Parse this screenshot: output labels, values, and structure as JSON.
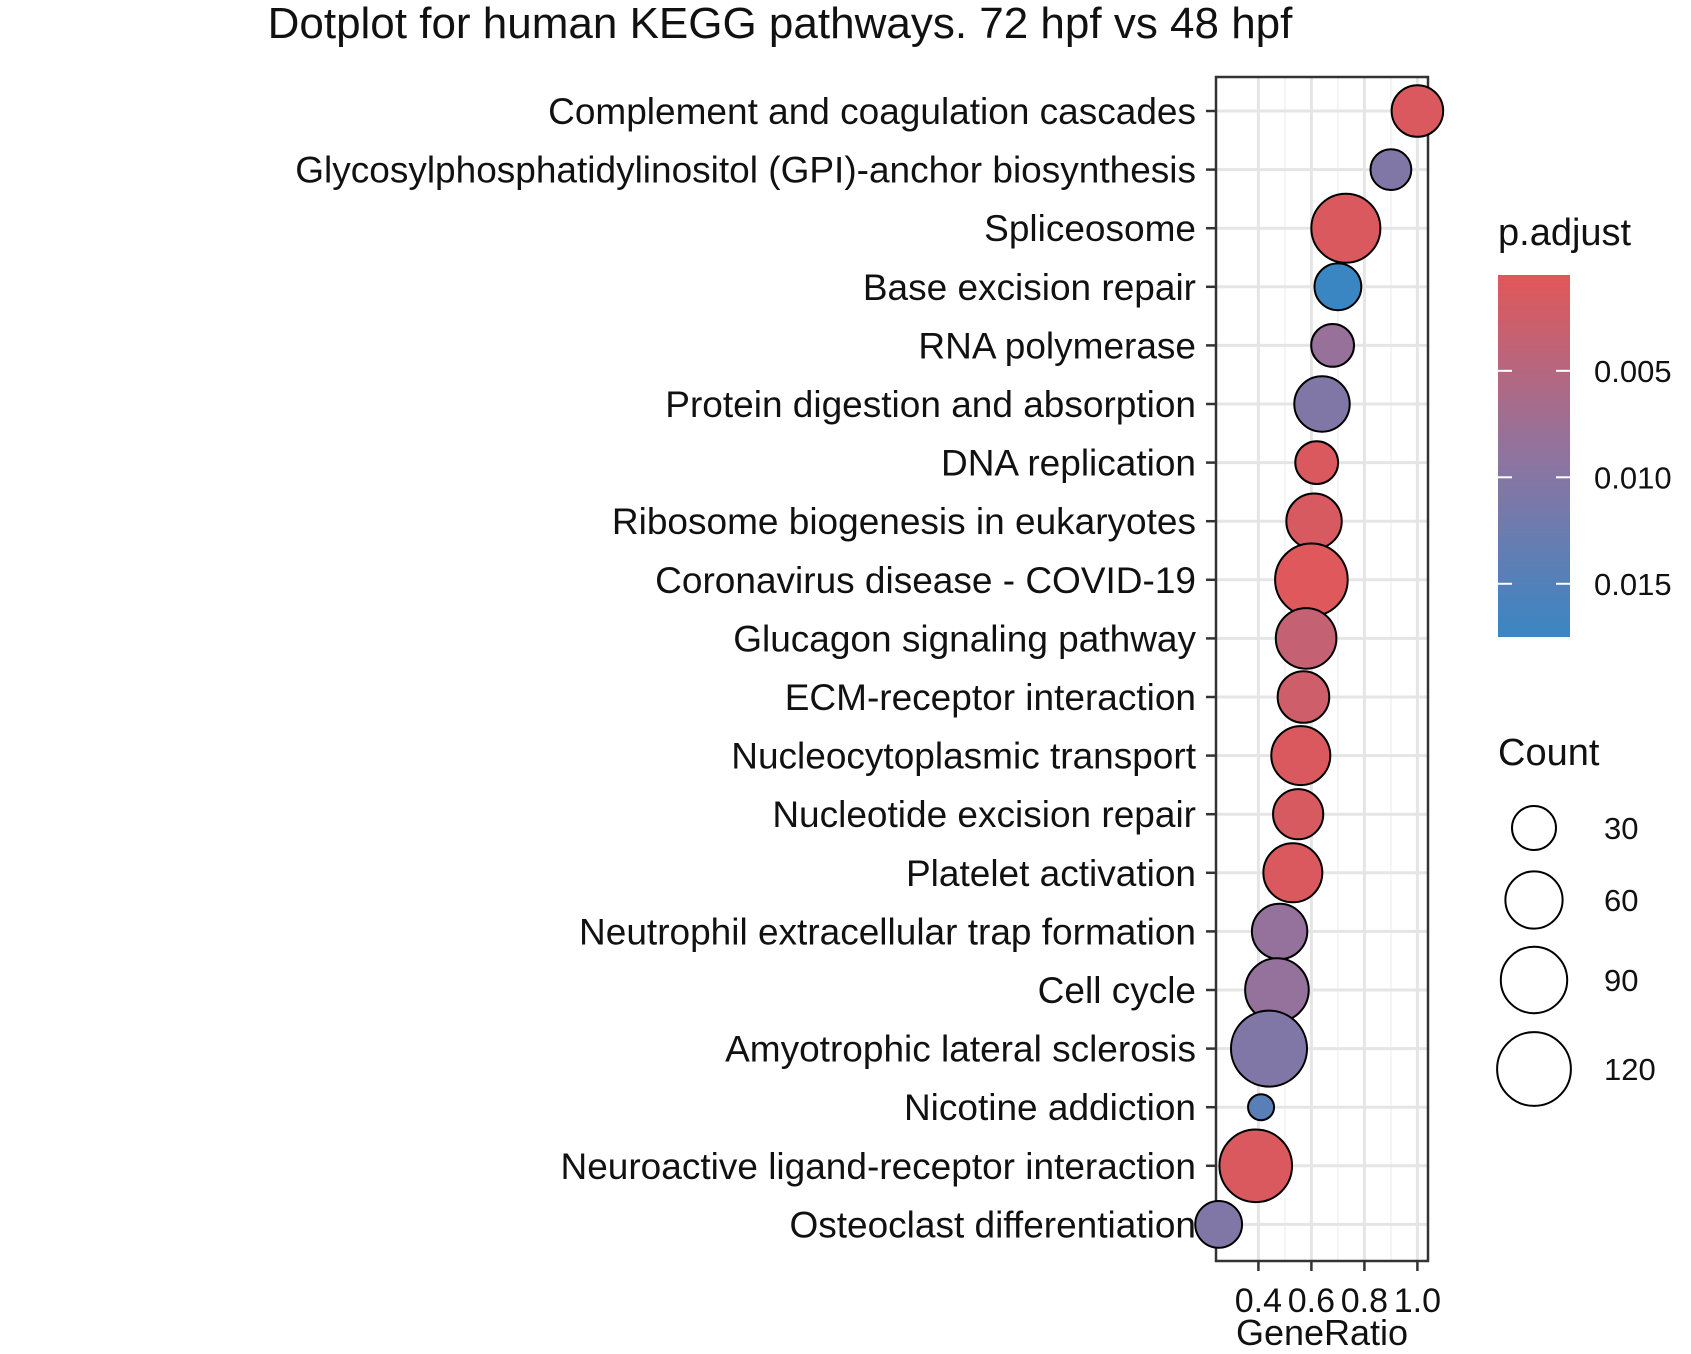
{
  "chart_data": {
    "type": "scatter",
    "title": "Dotplot for human KEGG pathways. 72 hpf vs 48 hpf",
    "xlabel": "GeneRatio",
    "ylabel": "",
    "xlim": [
      0.24,
      1.04
    ],
    "xticks": [
      0.4,
      0.6,
      0.8,
      1.0
    ],
    "xtick_labels": [
      "0.4",
      "0.6",
      "0.8",
      "1.0"
    ],
    "grid": true,
    "color_legend": {
      "title": "p.adjust",
      "ticks": [
        0.005,
        0.01,
        0.015
      ],
      "tick_labels": [
        "0.005",
        "0.010",
        "0.015"
      ],
      "range": [
        0.0005,
        0.0175
      ],
      "low_color": "#E15759",
      "mid_color": "#8F74A0",
      "high_color": "#3A86C3"
    },
    "size_legend": {
      "title": "Count",
      "values": [
        30,
        60,
        90,
        120
      ],
      "labels": [
        "30",
        "60",
        "90",
        "120"
      ]
    },
    "points": [
      {
        "pathway": "Complement and coagulation cascades",
        "gene_ratio": 1.0,
        "count": 45,
        "p_adjust": 0.0012
      },
      {
        "pathway": "Glycosylphosphatidylinositol (GPI)-anchor biosynthesis",
        "gene_ratio": 0.9,
        "count": 25,
        "p_adjust": 0.0105
      },
      {
        "pathway": "Spliceosome",
        "gene_ratio": 0.73,
        "count": 100,
        "p_adjust": 0.0012
      },
      {
        "pathway": "Base excision repair",
        "gene_ratio": 0.7,
        "count": 35,
        "p_adjust": 0.0175
      },
      {
        "pathway": "RNA polymerase",
        "gene_ratio": 0.68,
        "count": 28,
        "p_adjust": 0.0082
      },
      {
        "pathway": "Protein digestion and absorption",
        "gene_ratio": 0.64,
        "count": 55,
        "p_adjust": 0.0105
      },
      {
        "pathway": "DNA replication",
        "gene_ratio": 0.62,
        "count": 28,
        "p_adjust": 0.0012
      },
      {
        "pathway": "Ribosome biogenesis in eukaryotes",
        "gene_ratio": 0.61,
        "count": 55,
        "p_adjust": 0.0015
      },
      {
        "pathway": "Coronavirus disease - COVID-19",
        "gene_ratio": 0.6,
        "count": 115,
        "p_adjust": 0.0008
      },
      {
        "pathway": "Glucagon signaling pathway",
        "gene_ratio": 0.58,
        "count": 70,
        "p_adjust": 0.0035
      },
      {
        "pathway": "ECM-receptor interaction",
        "gene_ratio": 0.57,
        "count": 45,
        "p_adjust": 0.0025
      },
      {
        "pathway": "Nucleocytoplasmic transport",
        "gene_ratio": 0.56,
        "count": 65,
        "p_adjust": 0.0012
      },
      {
        "pathway": "Nucleotide excision repair",
        "gene_ratio": 0.55,
        "count": 42,
        "p_adjust": 0.0015
      },
      {
        "pathway": "Platelet activation",
        "gene_ratio": 0.53,
        "count": 65,
        "p_adjust": 0.0012
      },
      {
        "pathway": "Neutrophil extracellular trap formation",
        "gene_ratio": 0.48,
        "count": 55,
        "p_adjust": 0.0085
      },
      {
        "pathway": "Cell cycle",
        "gene_ratio": 0.47,
        "count": 80,
        "p_adjust": 0.0085
      },
      {
        "pathway": "Amyotrophic lateral sclerosis",
        "gene_ratio": 0.44,
        "count": 130,
        "p_adjust": 0.0105
      },
      {
        "pathway": "Nicotine addiction",
        "gene_ratio": 0.41,
        "count": 15,
        "p_adjust": 0.0145
      },
      {
        "pathway": "Neuroactive ligand-receptor interaction",
        "gene_ratio": 0.39,
        "count": 115,
        "p_adjust": 0.0012
      },
      {
        "pathway": "Osteoclast differentiation",
        "gene_ratio": 0.25,
        "count": 35,
        "p_adjust": 0.0105
      }
    ]
  }
}
